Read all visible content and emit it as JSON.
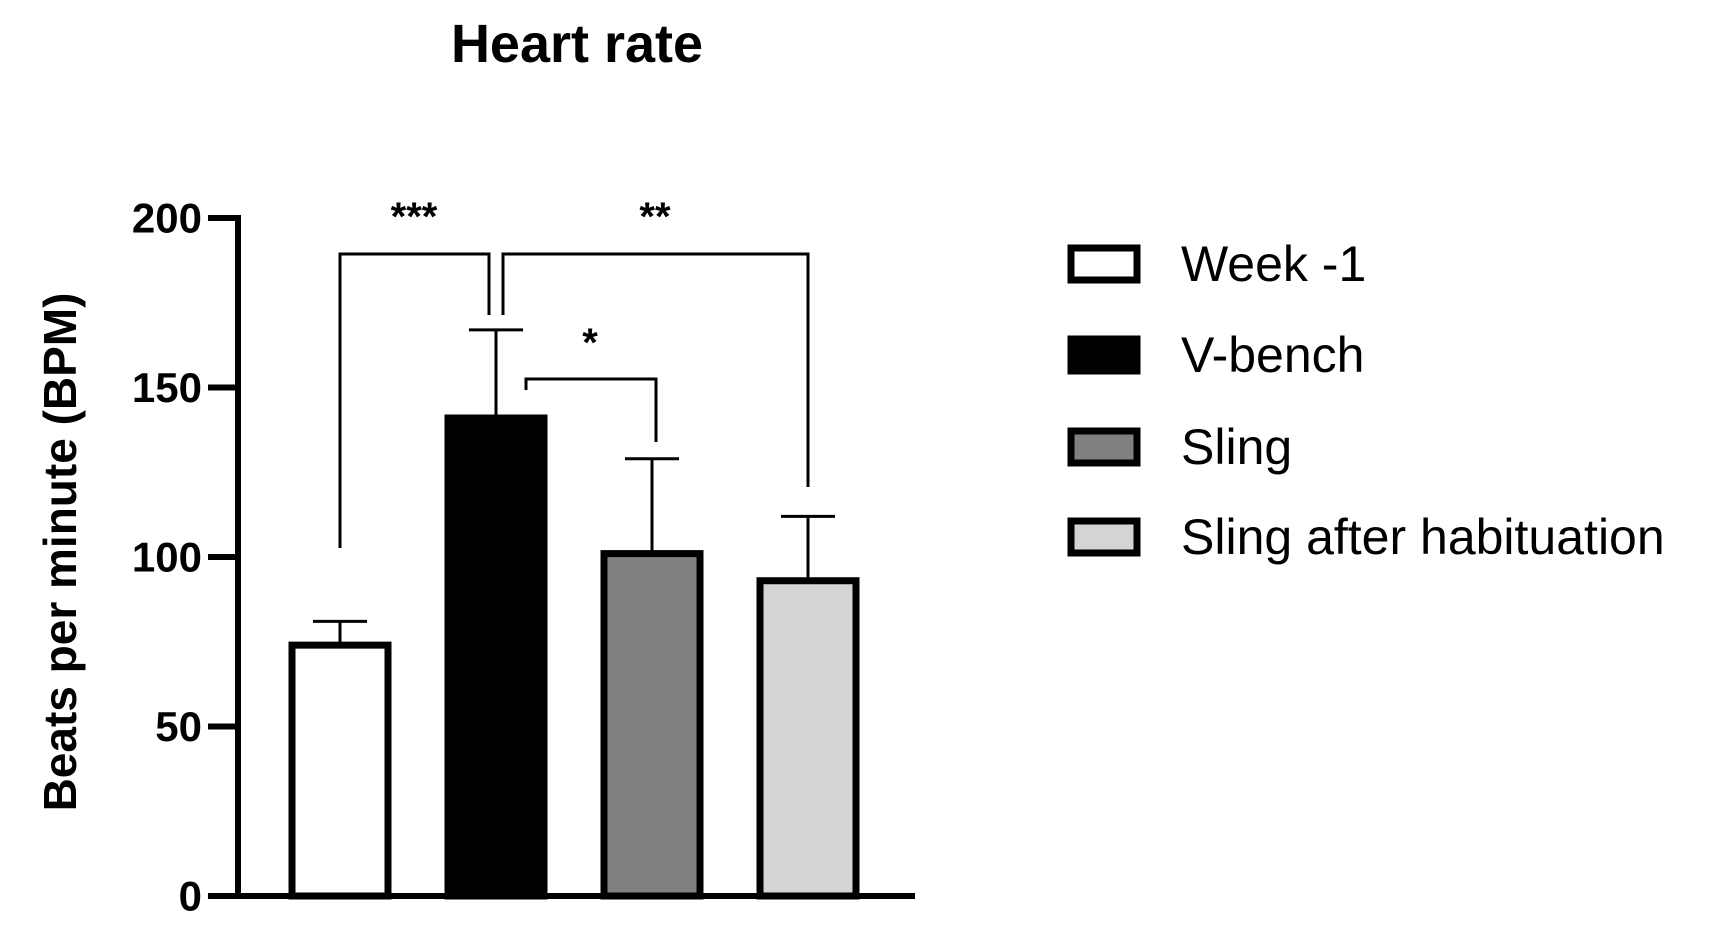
{
  "chart_data": {
    "type": "bar",
    "title": "Heart rate",
    "xlabel": "",
    "ylabel": "Beats per minute (BPM)",
    "ylim": [
      0,
      200
    ],
    "yticks": [
      0,
      50,
      100,
      150,
      200
    ],
    "categories": [
      "Week -1",
      "V-bench",
      "Sling",
      "Sling after habituation"
    ],
    "values": [
      74,
      141,
      101,
      93
    ],
    "errors": [
      7,
      26,
      28,
      19
    ],
    "colors": [
      "#ffffff",
      "#000000",
      "#808080",
      "#d4d4d4"
    ],
    "grid": false,
    "legend_position": "right",
    "significance": [
      {
        "from": 0,
        "to": 1,
        "label": "***",
        "level": 189
      },
      {
        "from": 1,
        "to": 3,
        "label": "**",
        "level": 189
      },
      {
        "from": 1,
        "to": 2,
        "label": "*",
        "level": 152
      }
    ]
  }
}
